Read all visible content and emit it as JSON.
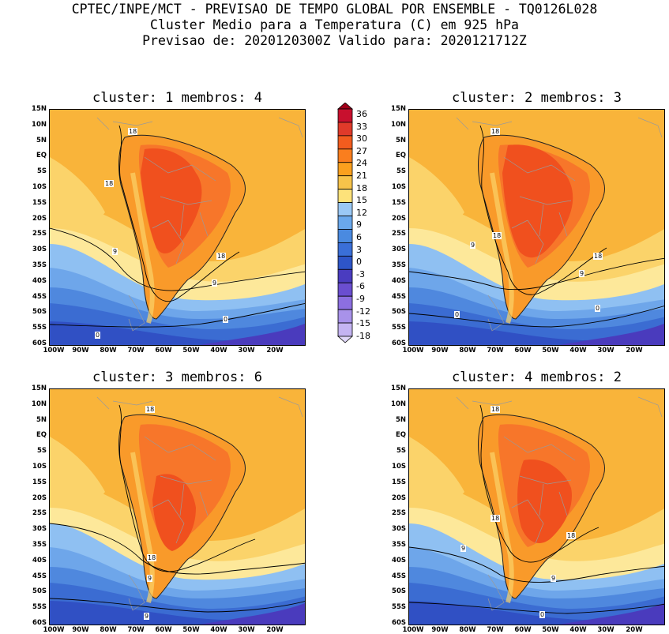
{
  "header": {
    "line1": "CPTEC/INPE/MCT - PREVISAO DE TEMPO GLOBAL POR ENSEMBLE - TQ0126L028",
    "line2": "Cluster Medio para a Temperatura (C) em 925 hPa",
    "line3": "Previsao de: 2020120300Z   Valido para: 2020121712Z"
  },
  "panels": [
    {
      "title": "cluster: 1  membros: 4"
    },
    {
      "title": "cluster: 2  membros: 3"
    },
    {
      "title": "cluster: 3  membros: 6"
    },
    {
      "title": "cluster: 4  membros: 2"
    }
  ],
  "lat_labels": [
    "15N",
    "10N",
    "5N",
    "EQ",
    "5S",
    "10S",
    "15S",
    "20S",
    "25S",
    "30S",
    "35S",
    "40S",
    "45S",
    "50S",
    "55S",
    "60S"
  ],
  "lon_labels": [
    "100W",
    "90W",
    "80W",
    "70W",
    "60W",
    "50W",
    "40W",
    "30W",
    "20W"
  ],
  "colorbar": {
    "labels": [
      "36",
      "33",
      "30",
      "27",
      "24",
      "21",
      "18",
      "15",
      "12",
      "9",
      "6",
      "3",
      "0",
      "-3",
      "-6",
      "-9",
      "-12",
      "-15",
      "-18"
    ],
    "colors": [
      "#a0001a",
      "#c8102e",
      "#e03a2a",
      "#f25c1e",
      "#fa7e1e",
      "#fba01e",
      "#f7c34a",
      "#fde27a",
      "#9ac8f5",
      "#6aa8ec",
      "#4a8ae0",
      "#3a6fd8",
      "#2e55c8",
      "#4a3cc0",
      "#6a4ed0",
      "#8c6fe0",
      "#a892ea",
      "#c4b4f2",
      "#e0d8f8"
    ]
  },
  "contour_labels": {
    "p1": [
      "18",
      "18",
      "18",
      "9",
      "9",
      "0",
      "0"
    ],
    "p2": [
      "18",
      "18",
      "18",
      "9",
      "9",
      "0",
      "0"
    ],
    "p3": [
      "18",
      "18",
      "9",
      "9"
    ],
    "p4": [
      "18",
      "18",
      "18",
      "9",
      "9",
      "0"
    ]
  }
}
